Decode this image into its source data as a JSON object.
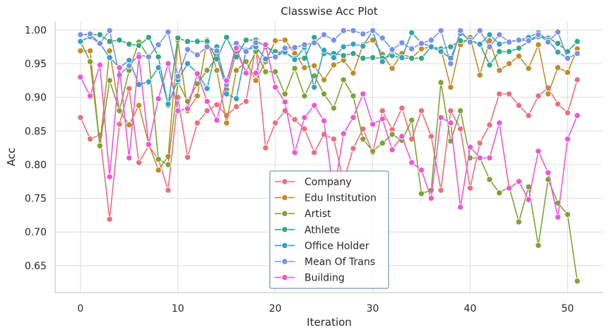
{
  "chart_data": {
    "type": "line",
    "title": "Classwise Acc Plot",
    "xlabel": "Iteration",
    "ylabel": "Acc",
    "xlim": [
      -2.6,
      53.6
    ],
    "ylim": [
      0.61,
      1.013
    ],
    "xticks": [
      0,
      10,
      20,
      30,
      40,
      50
    ],
    "yticks": [
      0.65,
      0.7,
      0.75,
      0.8,
      0.85,
      0.9,
      0.95,
      1.0
    ],
    "grid": true,
    "legend_position": "lower-center",
    "x": [
      0,
      1,
      2,
      3,
      4,
      5,
      6,
      7,
      8,
      9,
      10,
      11,
      12,
      13,
      14,
      15,
      16,
      17,
      18,
      19,
      20,
      21,
      22,
      23,
      24,
      25,
      26,
      27,
      28,
      29,
      30,
      31,
      32,
      33,
      34,
      35,
      36,
      37,
      38,
      39,
      40,
      41,
      42,
      43,
      44,
      45,
      46,
      47,
      48,
      49,
      50,
      51
    ],
    "series": [
      {
        "name": "Company",
        "color": "#e8707d",
        "values": [
          0.87,
          0.838,
          0.844,
          0.719,
          0.86,
          0.913,
          0.803,
          0.828,
          0.808,
          0.762,
          0.9,
          0.811,
          0.862,
          0.88,
          0.889,
          0.873,
          0.886,
          0.894,
          0.975,
          0.825,
          0.862,
          0.88,
          0.867,
          0.853,
          0.818,
          0.845,
          0.838,
          0.775,
          0.824,
          0.853,
          0.818,
          0.88,
          0.852,
          0.884,
          0.838,
          0.88,
          0.842,
          0.762,
          0.88,
          0.853,
          0.765,
          0.832,
          0.859,
          0.905,
          0.905,
          0.888,
          0.873,
          0.902,
          0.914,
          0.89,
          0.877,
          0.926
        ]
      },
      {
        "name": "Edu Institution",
        "color": "#c18b2b",
        "values": [
          0.969,
          0.969,
          0.828,
          0.969,
          0.88,
          0.859,
          0.888,
          0.831,
          0.792,
          0.812,
          0.985,
          0.88,
          0.902,
          0.985,
          0.94,
          0.862,
          0.94,
          0.953,
          0.925,
          0.953,
          0.984,
          0.985,
          0.965,
          0.944,
          0.947,
          0.926,
          0.948,
          0.955,
          0.936,
          0.978,
          0.985,
          0.964,
          0.943,
          0.965,
          0.958,
          0.972,
          0.975,
          0.972,
          0.915,
          0.978,
          0.989,
          0.933,
          0.984,
          0.94,
          0.95,
          0.961,
          0.943,
          0.978,
          0.905,
          0.944,
          0.937,
          0.972
        ]
      },
      {
        "name": "Artist",
        "color": "#7fa236",
        "values": [
          0.983,
          0.953,
          0.828,
          0.925,
          0.88,
          0.94,
          0.982,
          0.96,
          0.808,
          0.8,
          0.923,
          0.894,
          0.92,
          0.94,
          0.96,
          0.912,
          0.968,
          0.938,
          0.968,
          0.938,
          0.938,
          0.905,
          0.943,
          0.902,
          0.932,
          0.905,
          0.884,
          0.926,
          0.902,
          0.838,
          0.82,
          0.832,
          0.845,
          0.836,
          0.866,
          0.757,
          0.762,
          0.922,
          0.835,
          0.88,
          0.81,
          0.81,
          0.778,
          0.758,
          0.767,
          0.715,
          0.767,
          0.68,
          0.778,
          0.743,
          0.726,
          0.627
        ]
      },
      {
        "name": "Athlete",
        "color": "#33a783",
        "values": [
          0.993,
          0.993,
          0.993,
          0.983,
          0.985,
          0.979,
          0.977,
          0.989,
          0.96,
          0.888,
          0.988,
          0.983,
          0.983,
          0.983,
          0.957,
          0.989,
          0.96,
          0.985,
          0.985,
          0.975,
          0.968,
          0.966,
          0.958,
          0.958,
          0.989,
          0.965,
          0.965,
          0.962,
          0.965,
          0.958,
          0.959,
          0.958,
          0.962,
          0.958,
          0.958,
          0.958,
          0.975,
          0.972,
          0.975,
          0.984,
          0.984,
          0.979,
          0.948,
          0.968,
          0.968,
          0.973,
          0.983,
          0.99,
          0.988,
          0.98,
          0.968,
          0.983
        ]
      },
      {
        "name": "Office Holder",
        "color": "#36a1c0",
        "values": [
          0.983,
          0.99,
          0.98,
          0.959,
          0.944,
          0.955,
          0.919,
          0.923,
          0.944,
          0.89,
          0.926,
          0.95,
          0.936,
          0.913,
          0.975,
          0.905,
          0.898,
          0.97,
          0.975,
          0.957,
          0.961,
          0.967,
          0.956,
          0.974,
          0.915,
          0.97,
          0.959,
          0.975,
          0.979,
          0.976,
          0.999,
          0.953,
          0.969,
          0.959,
          0.996,
          0.981,
          0.975,
          0.968,
          0.958,
          0.995,
          0.985,
          0.979,
          0.993,
          0.979,
          0.983,
          0.985,
          0.989,
          0.996,
          0.985,
          0.967,
          0.958,
          0.965
        ]
      },
      {
        "name": "Mean Of Trans",
        "color": "#7b90e3",
        "values": [
          0.993,
          0.994,
          0.98,
          0.999,
          0.933,
          0.947,
          0.963,
          0.96,
          0.978,
          0.997,
          0.931,
          0.971,
          0.963,
          0.975,
          0.969,
          0.919,
          0.98,
          0.968,
          0.981,
          0.979,
          0.96,
          0.973,
          0.974,
          0.978,
          0.981,
          0.993,
          0.985,
          0.999,
          0.999,
          0.994,
          0.999,
          0.988,
          0.971,
          0.981,
          0.972,
          0.98,
          0.985,
          0.999,
          0.95,
          0.999,
          0.982,
          0.999,
          0.975,
          0.993,
          0.982,
          0.985,
          0.984,
          0.993,
          0.982,
          0.997,
          0.958,
          0.965
        ]
      },
      {
        "name": "Building",
        "color": "#ec58d3",
        "values": [
          0.93,
          0.902,
          0.948,
          0.782,
          0.944,
          0.81,
          0.96,
          0.83,
          0.898,
          0.95,
          0.88,
          0.883,
          0.935,
          0.894,
          0.866,
          0.925,
          0.973,
          0.936,
          0.936,
          0.978,
          0.915,
          0.893,
          0.818,
          0.87,
          0.888,
          0.865,
          0.756,
          0.846,
          0.87,
          0.905,
          0.86,
          0.868,
          0.822,
          0.842,
          0.803,
          0.792,
          0.75,
          0.87,
          0.862,
          0.737,
          0.826,
          0.81,
          0.81,
          0.862,
          0.765,
          0.775,
          0.748,
          0.82,
          0.788,
          0.722,
          0.838,
          0.873
        ]
      }
    ]
  }
}
